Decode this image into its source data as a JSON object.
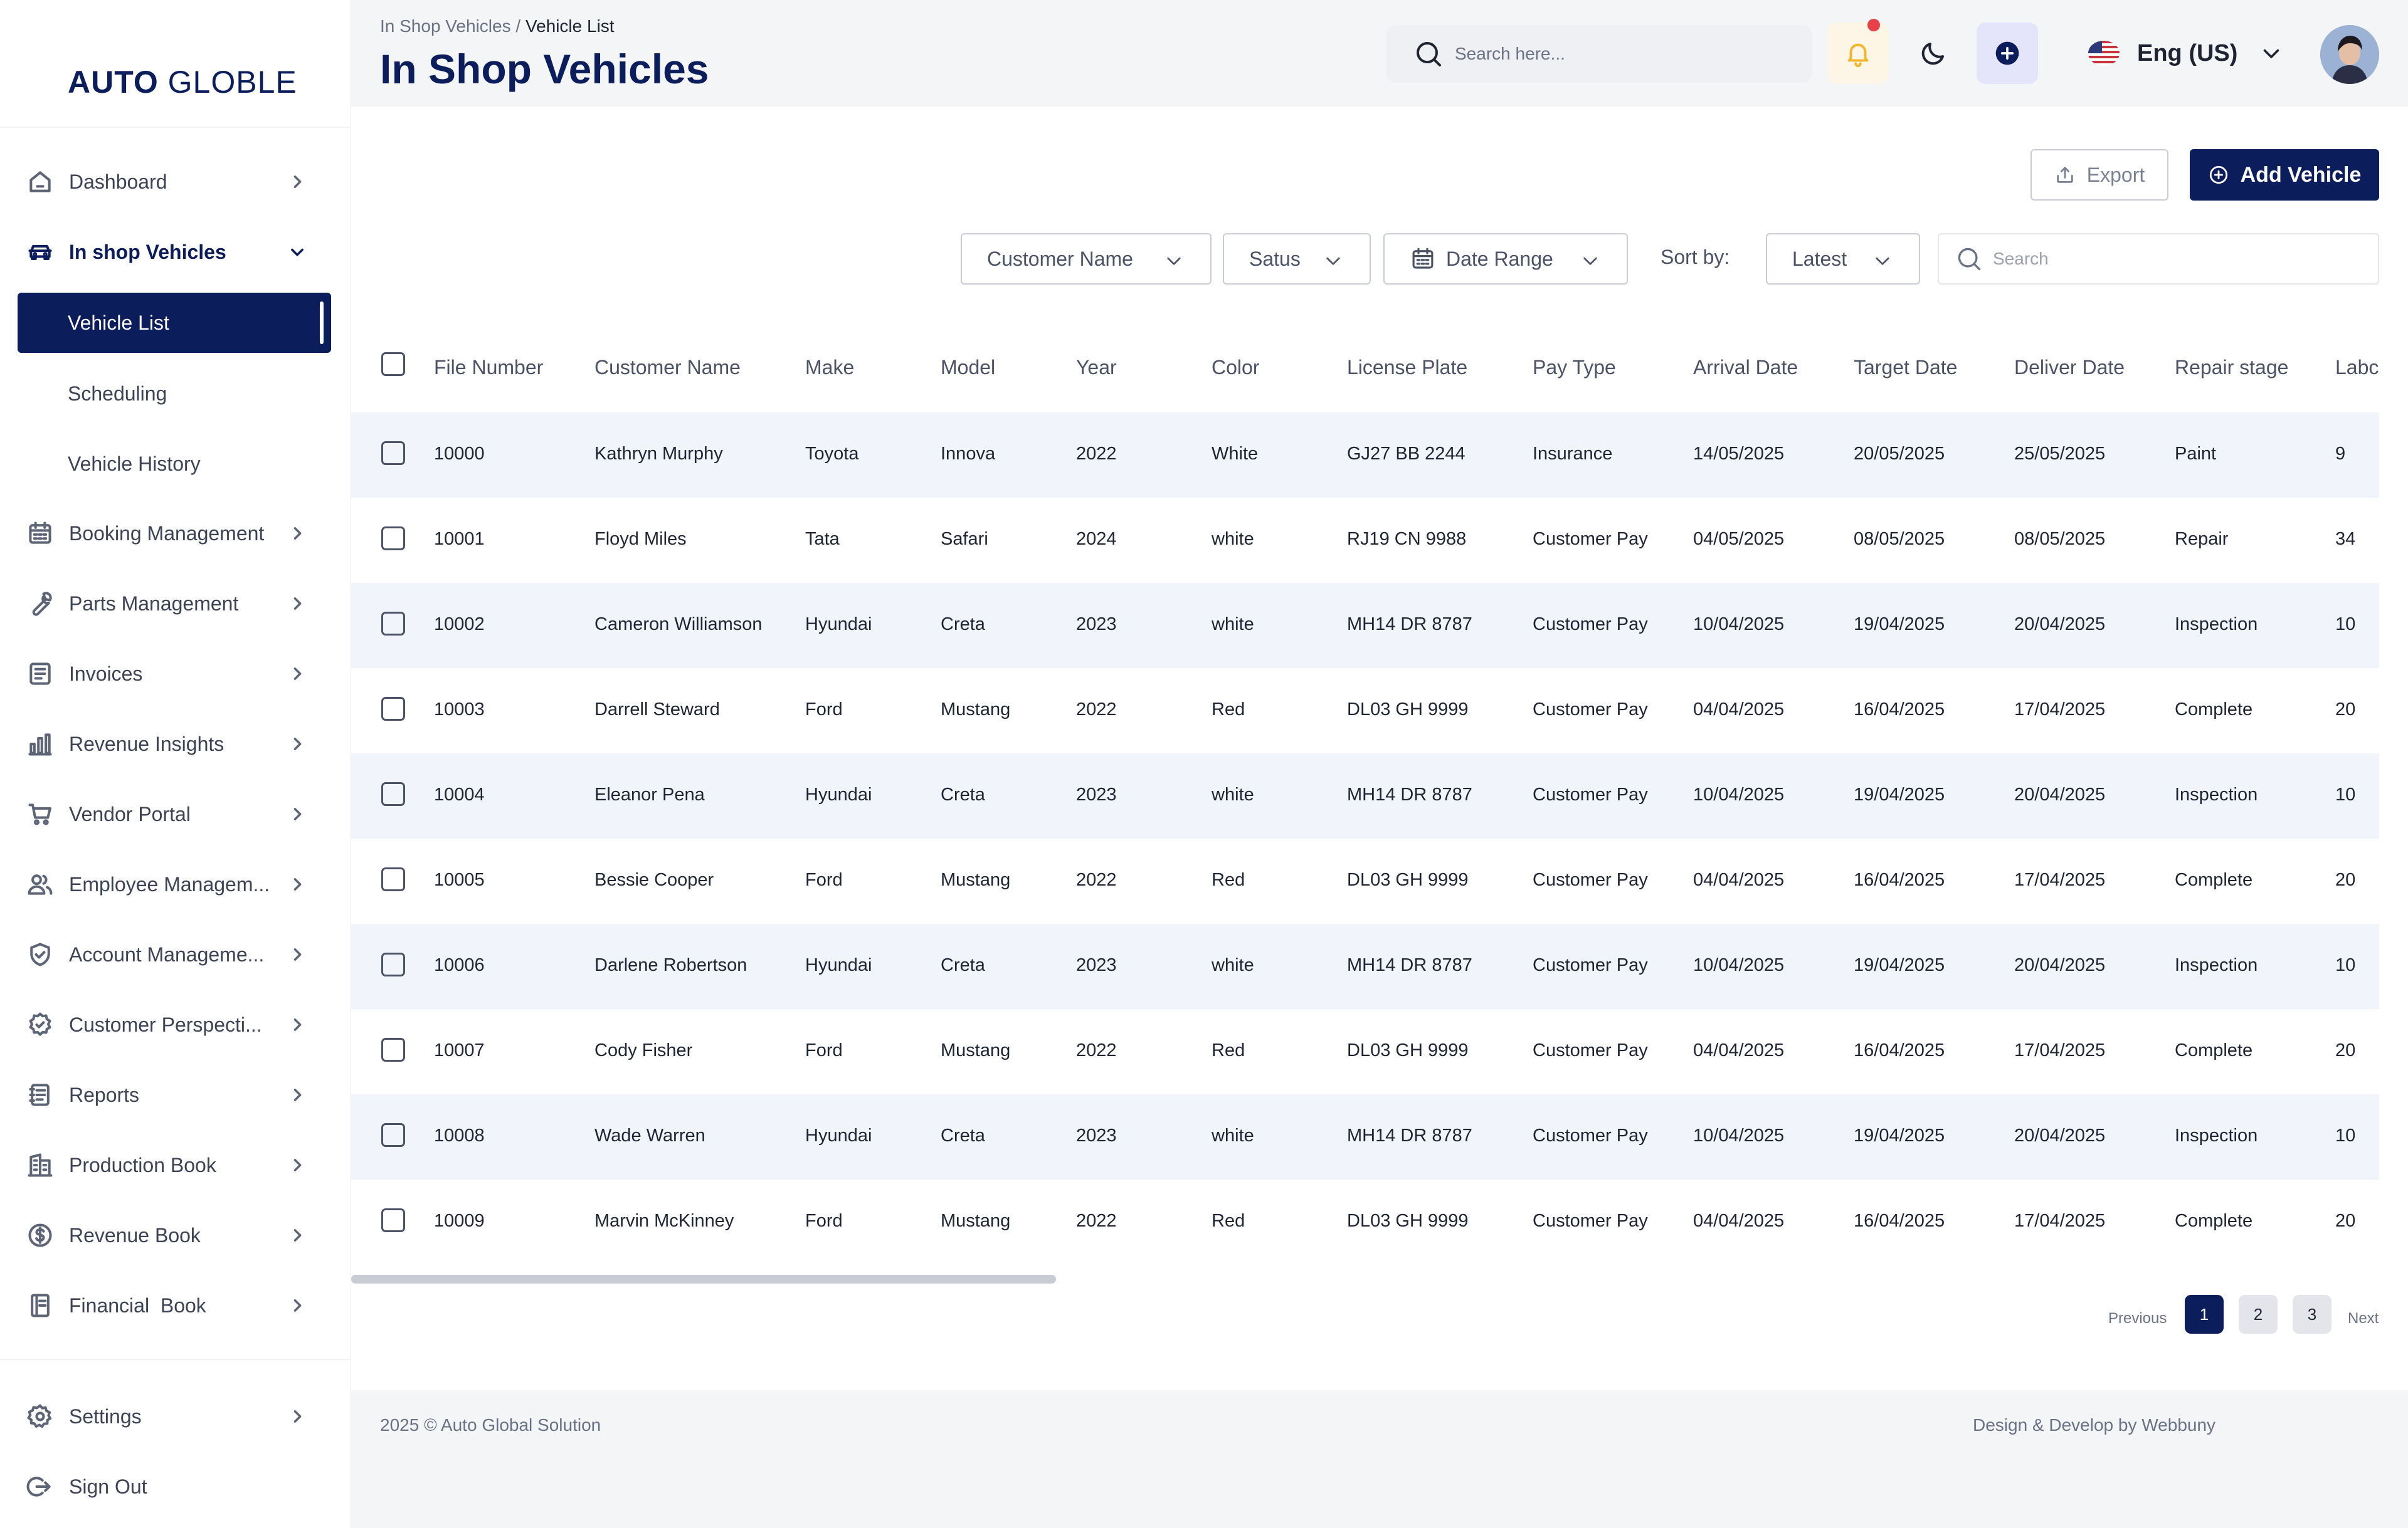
{
  "brand": {
    "name_bold": "AUTO",
    "name_light": "GLOBLE",
    "color": "#0c1d5c"
  },
  "sidebar": {
    "items": [
      {
        "label": "Dashboard",
        "icon": "home-icon"
      },
      {
        "label": "In shop Vehicles",
        "icon": "car-icon",
        "expanded": true
      },
      {
        "label": "Booking Management",
        "icon": "calendar-icon"
      },
      {
        "label": "Parts Management",
        "icon": "wrench-icon"
      },
      {
        "label": "Invoices",
        "icon": "invoice-icon"
      },
      {
        "label": "Revenue Insights",
        "icon": "bar-chart-icon"
      },
      {
        "label": "Vendor Portal",
        "icon": "cart-icon"
      },
      {
        "label": "Employee Managem...",
        "icon": "users-icon"
      },
      {
        "label": "Account Manageme...",
        "icon": "shield-icon"
      },
      {
        "label": "Customer Perspecti...",
        "icon": "badge-icon"
      },
      {
        "label": "Reports",
        "icon": "report-icon"
      },
      {
        "label": "Production Book",
        "icon": "building-icon"
      },
      {
        "label": "Revenue Book",
        "icon": "dollar-icon"
      },
      {
        "label": "Financial  Book",
        "icon": "book-icon"
      }
    ],
    "subitems": [
      {
        "label": "Vehicle List",
        "active": true
      },
      {
        "label": "Scheduling"
      },
      {
        "label": "Vehicle History"
      }
    ],
    "bottom": [
      {
        "label": "Settings",
        "icon": "gear-icon"
      },
      {
        "label": "Sign Out",
        "icon": "sign-out-icon"
      }
    ]
  },
  "header": {
    "breadcrumb_parent": "In Shop Vehicles",
    "breadcrumb_sep": " / ",
    "breadcrumb_current": "Vehicle List",
    "title": "In Shop Vehicles",
    "search_placeholder": "Search here...",
    "language": "Eng (US)"
  },
  "actions": {
    "export": "Export",
    "add": "Add Vehicle"
  },
  "filters": {
    "customer": "Customer Name",
    "status": "Satus",
    "date": "Date Range",
    "sort_label": "Sort by:",
    "sort_value": "Latest",
    "search_placeholder": "Search"
  },
  "table": {
    "columns": [
      "File Number",
      "Customer Name",
      "Make",
      "Model",
      "Year",
      "Color",
      "License Plate",
      "Pay Type",
      "Arrival Date",
      "Target Date",
      "Deliver Date",
      "Repair stage",
      "Labc"
    ],
    "rows": [
      [
        "10000",
        "Kathryn Murphy",
        "Toyota",
        "Innova",
        "2022",
        "White",
        "GJ27 BB 2244",
        "Insurance",
        "14/05/2025",
        "20/05/2025",
        "25/05/2025",
        "Paint",
        "9"
      ],
      [
        "10001",
        "Floyd Miles",
        "Tata",
        "Safari",
        "2024",
        "white",
        "RJ19 CN 9988",
        "Customer Pay",
        "04/05/2025",
        "08/05/2025",
        "08/05/2025",
        "Repair",
        "34"
      ],
      [
        "10002",
        "Cameron Williamson",
        "Hyundai",
        "Creta",
        "2023",
        "white",
        "MH14 DR 8787",
        "Customer Pay",
        "10/04/2025",
        "19/04/2025",
        "20/04/2025",
        "Inspection",
        "10"
      ],
      [
        "10003",
        "Darrell Steward",
        "Ford",
        "Mustang",
        "2022",
        "Red",
        "DL03 GH 9999",
        "Customer Pay",
        "04/04/2025",
        "16/04/2025",
        "17/04/2025",
        "Complete",
        "20"
      ],
      [
        "10004",
        "Eleanor Pena",
        "Hyundai",
        "Creta",
        "2023",
        "white",
        "MH14 DR 8787",
        "Customer Pay",
        "10/04/2025",
        "19/04/2025",
        "20/04/2025",
        "Inspection",
        "10"
      ],
      [
        "10005",
        "Bessie Cooper",
        "Ford",
        "Mustang",
        "2022",
        "Red",
        "DL03 GH 9999",
        "Customer Pay",
        "04/04/2025",
        "16/04/2025",
        "17/04/2025",
        "Complete",
        "20"
      ],
      [
        "10006",
        "Darlene Robertson",
        "Hyundai",
        "Creta",
        "2023",
        "white",
        "MH14 DR 8787",
        "Customer Pay",
        "10/04/2025",
        "19/04/2025",
        "20/04/2025",
        "Inspection",
        "10"
      ],
      [
        "10007",
        "Cody Fisher",
        "Ford",
        "Mustang",
        "2022",
        "Red",
        "DL03 GH 9999",
        "Customer Pay",
        "04/04/2025",
        "16/04/2025",
        "17/04/2025",
        "Complete",
        "20"
      ],
      [
        "10008",
        "Wade Warren",
        "Hyundai",
        "Creta",
        "2023",
        "white",
        "MH14 DR 8787",
        "Customer Pay",
        "10/04/2025",
        "19/04/2025",
        "20/04/2025",
        "Inspection",
        "10"
      ],
      [
        "10009",
        "Marvin McKinney",
        "Ford",
        "Mustang",
        "2022",
        "Red",
        "DL03 GH 9999",
        "Customer Pay",
        "04/04/2025",
        "16/04/2025",
        "17/04/2025",
        "Complete",
        "20"
      ]
    ]
  },
  "pagination": {
    "previous": "Previous",
    "pages": [
      "1",
      "2",
      "3"
    ],
    "current": "1",
    "next": "Next"
  },
  "footer": {
    "copyright": "2025 © Auto Global Solution",
    "credit": "Design & Develop by Webbuny"
  },
  "colors": {
    "primary": "#0c1d5c",
    "row_alt": "#f1f4fa",
    "notification": "#e8414a"
  }
}
